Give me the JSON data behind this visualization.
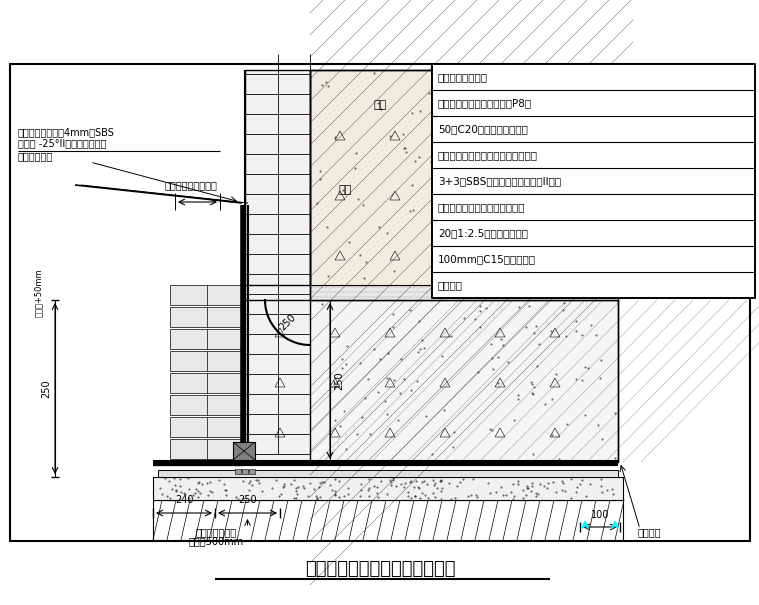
{
  "title": "地下室底板立面防水做法构造图",
  "bg_color": "#ffffff",
  "legend_items": [
    "详见建筑构造做法",
    "钢筋混凝土底板（抗渗等级P8）",
    "50厚C20细石混凝土保护层",
    "粘贴无纺聚酯纤维布一道（隔离层）",
    "3+3厚SBS改性沥青防水卷材（II型）",
    "刷基层处理剂一遍（冷底子油）",
    "20厚1:2.5水泥砂浆找平层",
    "100mm厚C15混凝土垫层",
    "素土夯实"
  ],
  "text_sbs": "此部分防水卷材用4mm厚SBS",
  "text_sbs2": "聚酯胎 -25°II型改性沥青卷材",
  "text_fengcha": "防水卷材凤茬",
  "text_shuacha": "甩茬长度按实际情况",
  "text_outdoor": "室外",
  "text_wall": "外墙",
  "text_addlayer": "防水卷材附加层",
  "text_width500": "宽度为500mm",
  "text_splice": "卷材搭接",
  "text_prot": "保护层+50mm",
  "dim_240": "240",
  "dim_250a": "250",
  "dim_100": "100",
  "dim_250b": "250",
  "dim_250c": "250",
  "note_arc": "250"
}
